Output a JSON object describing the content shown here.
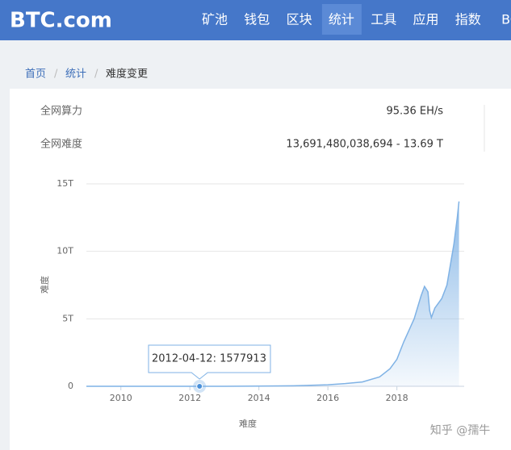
{
  "header": {
    "logo": "BTC.com",
    "nav": [
      "矿池",
      "钱包",
      "区块",
      "统计",
      "工具",
      "应用",
      "指数",
      "BC"
    ],
    "active": 3
  },
  "breadcrumb": [
    "首页",
    "统计",
    "难度变更"
  ],
  "stats": [
    {
      "label": "全网算力",
      "value": "95.36 EH/s"
    },
    {
      "label": "全网难度",
      "value": "13,691,480,038,694 - 13.69 T"
    }
  ],
  "chart_data": {
    "type": "area",
    "ylabel": "难度",
    "xlabel": "难度",
    "color": "#7fb2e5",
    "grid": true,
    "x": [
      2009.0,
      2010.0,
      2011.0,
      2012.0,
      2013.0,
      2014.0,
      2015.0,
      2016.0,
      2016.5,
      2017.0,
      2017.5,
      2017.8,
      2018.0,
      2018.2,
      2018.5,
      2018.7,
      2018.8,
      2018.9,
      2018.95,
      2019.0,
      2019.1,
      2019.3,
      2019.45,
      2019.55,
      2019.65,
      2019.75,
      2019.8
    ],
    "values": [
      1,
      1000,
      1000000,
      1500000,
      100000000,
      14000000000,
      40000000000,
      110000000000,
      200000000000,
      320000000000,
      700000000000,
      1300000000000,
      2000000000000,
      3300000000000,
      5000000000000,
      6700000000000,
      7400000000000,
      7000000000000,
      5600000000000,
      5100000000000,
      5800000000000,
      6500000000000,
      7500000000000,
      9000000000000,
      10500000000000,
      12500000000000,
      13700000000000
    ],
    "xlim": [
      2009,
      2019.95
    ],
    "xticks": [
      2010,
      2012,
      2014,
      2016,
      2018
    ],
    "ylim": [
      0,
      15000000000000
    ],
    "yticks": [
      0,
      {
        "value": 5000000000000,
        "label": "5T"
      },
      {
        "value": 10000000000000,
        "label": "10T"
      },
      {
        "value": 15000000000000,
        "label": "15T"
      }
    ],
    "tooltip": {
      "label": "2012-04-12: 1577913",
      "x": 2012.28,
      "y": 1577913
    }
  },
  "watermark": "知乎 @孺牛"
}
